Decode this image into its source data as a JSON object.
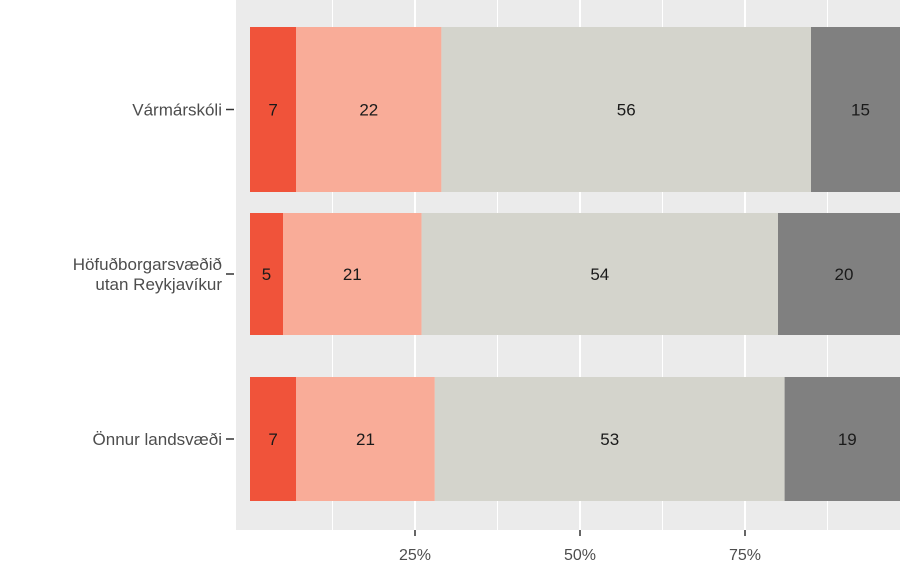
{
  "chart_data": {
    "type": "bar",
    "orientation": "horizontal",
    "stacked": true,
    "percent": true,
    "categories": [
      "Vármárskóli",
      "Höfuðborgarsvæðið utan Reykjavíkur",
      "Önnur landsvæði"
    ],
    "category_lines": [
      [
        "Vármárskóli"
      ],
      [
        "Höfuðborgarsvæðið",
        "utan Reykjavíkur"
      ],
      [
        "Önnur landsvæði"
      ]
    ],
    "series": [
      {
        "values": [
          7,
          5,
          7
        ],
        "color": "#f0533a"
      },
      {
        "values": [
          22,
          21,
          21
        ],
        "color": "#f9ac98"
      },
      {
        "values": [
          56,
          54,
          53
        ],
        "color": "#d4d4cc"
      },
      {
        "values": [
          15,
          20,
          19
        ],
        "color": "#808080"
      }
    ],
    "x_ticks": [
      25,
      50,
      75
    ],
    "x_tick_labels": [
      "25%",
      "50%",
      "75%"
    ],
    "xlim": [
      0,
      100
    ],
    "grid": true,
    "panel_background": "#ebebeb",
    "grid_color": "#ffffff"
  }
}
